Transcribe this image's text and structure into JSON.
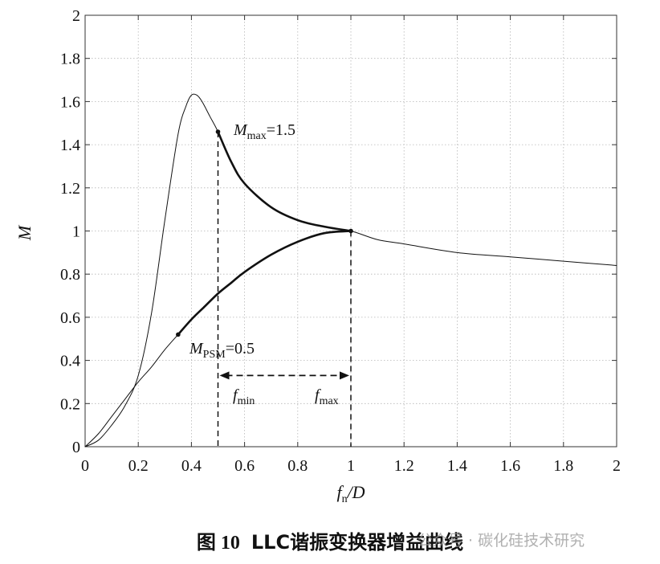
{
  "chart_data": {
    "type": "line",
    "xlabel": "f_n/D",
    "xlabel_parts": [
      "f",
      "n",
      "/D"
    ],
    "ylabel": "M",
    "xlim": [
      0,
      2
    ],
    "ylim": [
      0,
      2
    ],
    "x_ticks": [
      0,
      0.2,
      0.4,
      0.6,
      0.8,
      1,
      1.2,
      1.4,
      1.6,
      1.8,
      2
    ],
    "x_tick_labels": [
      "0",
      "0.2",
      "0.4",
      "0.6",
      "0.8",
      "1",
      "1.2",
      "1.4",
      "1.6",
      "1.8",
      "2"
    ],
    "y_ticks": [
      0,
      0.2,
      0.4,
      0.6,
      0.8,
      1,
      1.2,
      1.4,
      1.6,
      1.8,
      2
    ],
    "y_tick_labels": [
      "0",
      "0.2",
      "0.4",
      "0.6",
      "0.8",
      "1",
      "1.2",
      "1.4",
      "1.6",
      "1.8",
      "2"
    ],
    "grid": true,
    "series": [
      {
        "style": "thin",
        "x": [
          0.0,
          0.05,
          0.1,
          0.15,
          0.2,
          0.25,
          0.3,
          0.35,
          0.38,
          0.4,
          0.42,
          0.44,
          0.47,
          0.5,
          0.55,
          0.6,
          0.7,
          0.8,
          0.9,
          1.0,
          1.1,
          1.2,
          1.4,
          1.6,
          1.8,
          2.0
        ],
        "y": [
          0.0,
          0.03,
          0.1,
          0.19,
          0.33,
          0.62,
          1.05,
          1.45,
          1.58,
          1.63,
          1.63,
          1.6,
          1.53,
          1.46,
          1.32,
          1.22,
          1.11,
          1.05,
          1.02,
          1.0,
          0.96,
          0.94,
          0.9,
          0.88,
          0.86,
          0.84
        ]
      },
      {
        "style": "thin",
        "x": [
          0.0,
          0.05,
          0.1,
          0.15,
          0.2,
          0.25,
          0.3,
          0.35
        ],
        "y": [
          0.0,
          0.06,
          0.14,
          0.22,
          0.3,
          0.37,
          0.45,
          0.52
        ]
      },
      {
        "style": "bold",
        "x": [
          0.5,
          0.55,
          0.6,
          0.7,
          0.8,
          0.9,
          1.0
        ],
        "y": [
          1.46,
          1.32,
          1.22,
          1.11,
          1.05,
          1.02,
          1.0
        ]
      },
      {
        "style": "bold",
        "x": [
          0.35,
          0.4,
          0.45,
          0.5,
          0.55,
          0.6,
          0.7,
          0.8,
          0.9,
          1.0
        ],
        "y": [
          0.52,
          0.59,
          0.65,
          0.71,
          0.76,
          0.81,
          0.89,
          0.95,
          0.99,
          1.0
        ]
      }
    ],
    "markers": [
      {
        "x": 0.5,
        "y": 1.46
      },
      {
        "x": 1.0,
        "y": 1.0
      },
      {
        "x": 0.35,
        "y": 0.52
      }
    ],
    "vlines": [
      {
        "x": 0.5,
        "y_top": 1.46
      },
      {
        "x": 1.0,
        "y_top": 1.0
      }
    ],
    "arrow": {
      "from": 0.5,
      "to": 1.0,
      "y": 0.33
    },
    "annotations": {
      "mmax": {
        "main": "M",
        "sub": "max",
        "value": "=1.5"
      },
      "mpsm": {
        "main": "M",
        "sub": "PSM",
        "value": "=0.5"
      },
      "fmin": {
        "main": "f",
        "sub": "min"
      },
      "fmax": {
        "main": "f",
        "sub": "max"
      }
    }
  },
  "caption": {
    "number": "图 10",
    "title": "LLC谐振变换器增益曲线"
  },
  "watermark": "公众号 · 碳化硅技术研究"
}
